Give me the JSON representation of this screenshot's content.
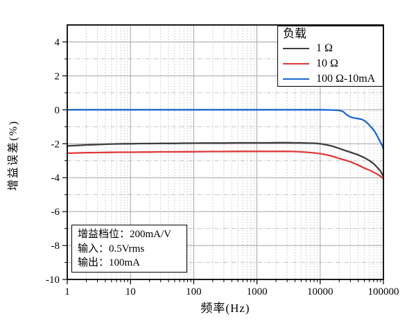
{
  "figure": {
    "x_axis": {
      "label": "频率(Hz)",
      "scale": "log",
      "tick_labels": [
        "1",
        "10",
        "100",
        "1000",
        "10000",
        "100000"
      ],
      "tick_values": [
        1,
        10,
        100,
        1000,
        10000,
        100000
      ]
    },
    "y_axis": {
      "label": "增益误差(%)",
      "tick_labels": [
        "4",
        "2",
        "0",
        "-2",
        "-4",
        "-6",
        "-8",
        "-10"
      ],
      "tick_values": [
        4,
        2,
        0,
        -2,
        -4,
        -6,
        -8,
        -10
      ],
      "minor_tick_values": [
        3,
        1,
        -1,
        -3,
        -5,
        -7,
        -9
      ]
    },
    "legend": {
      "title": "负载",
      "entries": [
        {
          "label": "1 Ω",
          "color": "#3f3f3f"
        },
        {
          "label": "10 Ω",
          "color": "#e03a3a"
        },
        {
          "label": "100 Ω-10mA",
          "color": "#1b66d6"
        }
      ]
    },
    "annotation": {
      "gain_range": "增益档位：200mA/V",
      "input": "输入：0.5Vrms",
      "output": "输出：100mA"
    },
    "colors": {
      "frame": "#000000",
      "major_grid": "#a3a3a3",
      "minor_grid": "#c4c4c4",
      "background": "#ffffff"
    }
  },
  "chart_data": {
    "type": "line",
    "title": "",
    "xlabel": "频率(Hz)",
    "ylabel": "增益误差(%)",
    "xscale": "log",
    "xlim": [
      1,
      100000
    ],
    "ylim": [
      -10,
      5
    ],
    "grid": {
      "major": true,
      "minor": true
    },
    "legend_title": "负载",
    "legend_position": "top-right",
    "series": [
      {
        "name": "1 Ω",
        "color": "#3f3f3f",
        "points": [
          [
            1,
            -2.13
          ],
          [
            1.5,
            -2.1
          ],
          [
            2,
            -2.07
          ],
          [
            3,
            -2.05
          ],
          [
            4,
            -2.03
          ],
          [
            6,
            -2.01
          ],
          [
            8,
            -2.0
          ],
          [
            10,
            -2.0
          ],
          [
            15,
            -1.99
          ],
          [
            20,
            -1.99
          ],
          [
            30,
            -1.98
          ],
          [
            50,
            -1.98
          ],
          [
            70,
            -1.97
          ],
          [
            100,
            -1.97
          ],
          [
            150,
            -1.96
          ],
          [
            200,
            -1.96
          ],
          [
            300,
            -1.96
          ],
          [
            500,
            -1.95
          ],
          [
            700,
            -1.95
          ],
          [
            1000,
            -1.95
          ],
          [
            1500,
            -1.95
          ],
          [
            2000,
            -1.94
          ],
          [
            3000,
            -1.94
          ],
          [
            4000,
            -1.95
          ],
          [
            5000,
            -1.95
          ],
          [
            6000,
            -1.96
          ],
          [
            8000,
            -1.97
          ],
          [
            10000,
            -2.0
          ],
          [
            12000,
            -2.05
          ],
          [
            15000,
            -2.13
          ],
          [
            18000,
            -2.22
          ],
          [
            20000,
            -2.28
          ],
          [
            25000,
            -2.4
          ],
          [
            30000,
            -2.5
          ],
          [
            40000,
            -2.66
          ],
          [
            50000,
            -2.82
          ],
          [
            60000,
            -3.0
          ],
          [
            70000,
            -3.18
          ],
          [
            80000,
            -3.4
          ],
          [
            90000,
            -3.62
          ],
          [
            100000,
            -3.92
          ]
        ]
      },
      {
        "name": "10 Ω",
        "color": "#e03a3a",
        "points": [
          [
            1,
            -2.56
          ],
          [
            1.5,
            -2.54
          ],
          [
            2,
            -2.53
          ],
          [
            3,
            -2.52
          ],
          [
            5,
            -2.51
          ],
          [
            7,
            -2.5
          ],
          [
            10,
            -2.5
          ],
          [
            15,
            -2.49
          ],
          [
            20,
            -2.49
          ],
          [
            30,
            -2.48
          ],
          [
            50,
            -2.48
          ],
          [
            100,
            -2.47
          ],
          [
            200,
            -2.46
          ],
          [
            300,
            -2.46
          ],
          [
            500,
            -2.45
          ],
          [
            1000,
            -2.45
          ],
          [
            2000,
            -2.45
          ],
          [
            3000,
            -2.45
          ],
          [
            4000,
            -2.46
          ],
          [
            5000,
            -2.48
          ],
          [
            6000,
            -2.5
          ],
          [
            8000,
            -2.54
          ],
          [
            10000,
            -2.58
          ],
          [
            12000,
            -2.64
          ],
          [
            15000,
            -2.72
          ],
          [
            18000,
            -2.81
          ],
          [
            20000,
            -2.87
          ],
          [
            25000,
            -2.97
          ],
          [
            30000,
            -3.06
          ],
          [
            40000,
            -3.26
          ],
          [
            50000,
            -3.43
          ],
          [
            60000,
            -3.56
          ],
          [
            70000,
            -3.68
          ],
          [
            80000,
            -3.8
          ],
          [
            90000,
            -3.92
          ],
          [
            100000,
            -4.05
          ]
        ]
      },
      {
        "name": "100 Ω-10mA",
        "color": "#1b66d6",
        "points": [
          [
            1,
            0
          ],
          [
            10,
            0
          ],
          [
            100,
            0
          ],
          [
            1000,
            0
          ],
          [
            5000,
            0
          ],
          [
            10000,
            0
          ],
          [
            15000,
            -0.01
          ],
          [
            20000,
            -0.03
          ],
          [
            23000,
            -0.1
          ],
          [
            26000,
            -0.28
          ],
          [
            30000,
            -0.42
          ],
          [
            34000,
            -0.48
          ],
          [
            40000,
            -0.52
          ],
          [
            46000,
            -0.57
          ],
          [
            52000,
            -0.68
          ],
          [
            58000,
            -0.85
          ],
          [
            65000,
            -1.05
          ],
          [
            72000,
            -1.25
          ],
          [
            80000,
            -1.55
          ],
          [
            88000,
            -1.85
          ],
          [
            95000,
            -2.08
          ],
          [
            100000,
            -2.3
          ]
        ]
      }
    ]
  }
}
